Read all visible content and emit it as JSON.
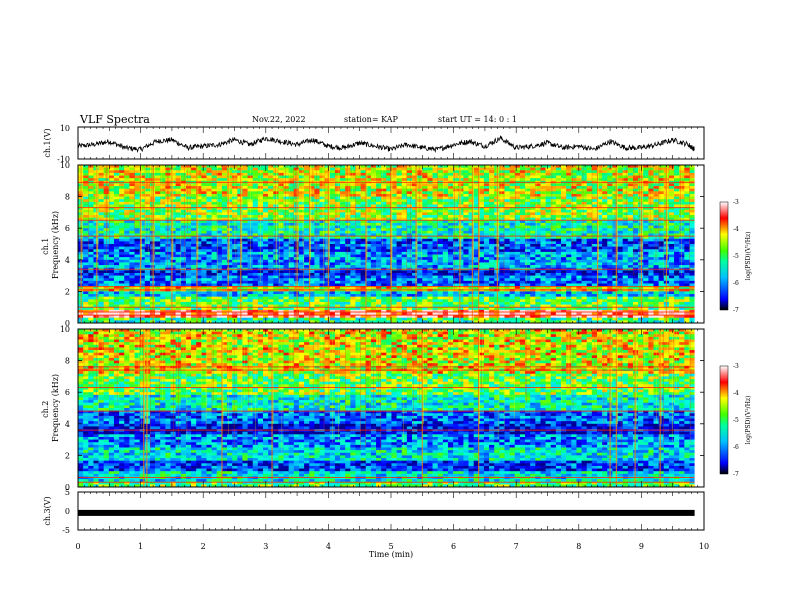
{
  "header": {
    "title": "VLF Spectra",
    "date": "Nov.22, 2022",
    "station": "station= KAP",
    "start": "start  UT =   14: 0  : 1"
  },
  "colors": {
    "bg": "#ffffff",
    "ink": "#000000",
    "colormap": [
      "#00008c",
      "#0000ff",
      "#00a0ff",
      "#00ffff",
      "#00ff80",
      "#40ff00",
      "#ffff00",
      "#ff8000",
      "#ff0000",
      "#ffffff"
    ]
  },
  "chart_data": [
    {
      "type": "line",
      "panel": "ch1-waveform",
      "ylabel": "ch.1(V)",
      "ylim": [
        -10,
        10
      ],
      "yticks": [
        "10",
        "-10"
      ],
      "x": [
        0,
        0.25,
        0.5,
        0.75,
        1.0,
        1.25,
        1.5,
        1.75,
        2.0,
        2.25,
        2.5,
        2.75,
        3.0,
        3.25,
        3.5,
        3.75,
        4.0,
        4.25,
        4.5,
        4.75,
        5.0,
        5.25,
        5.5,
        5.75,
        6.0,
        6.25,
        6.5,
        6.75,
        7.0,
        7.25,
        7.5,
        7.75,
        8.0,
        8.25,
        8.5,
        8.75,
        9.0,
        9.25,
        9.5,
        9.75,
        9.85
      ],
      "y": [
        -2,
        -1,
        1,
        -3,
        -4,
        1,
        2,
        -3,
        -2,
        -1,
        2,
        -1,
        3,
        1,
        -1,
        2,
        -2,
        -3,
        0,
        -2,
        -4,
        -1,
        -3,
        -4,
        -1,
        1,
        -2,
        3,
        -3,
        -2,
        0,
        -3,
        -2,
        -4,
        1,
        -3,
        -3,
        -1,
        2,
        -1,
        -4
      ]
    },
    {
      "type": "heatmap",
      "panel": "ch1-spectrogram",
      "ylabel": "ch.1\nFrequency (kHz)",
      "ylim": [
        0,
        10
      ],
      "yticks": [
        "0",
        "2",
        "4",
        "6",
        "8",
        "10"
      ],
      "xlim": [
        0,
        9.85
      ],
      "colorbar": {
        "label": "log(PSD)(V²/Hz)",
        "range": [
          -7,
          -3
        ],
        "ticks": [
          "-3",
          "-4",
          "-5",
          "-6",
          "-7"
        ]
      },
      "bands": [
        {
          "from": 0,
          "to": 0.4,
          "level": -5
        },
        {
          "from": 0.4,
          "to": 0.8,
          "level": -3.2
        },
        {
          "from": 0.8,
          "to": 1.6,
          "level": -4.8
        },
        {
          "from": 1.6,
          "to": 2.0,
          "level": -5.6
        },
        {
          "from": 2.0,
          "to": 2.3,
          "level": -4.2
        },
        {
          "from": 2.3,
          "to": 3.0,
          "level": -6.0
        },
        {
          "from": 3.0,
          "to": 3.4,
          "level": -6.5
        },
        {
          "from": 3.4,
          "to": 4.5,
          "level": -5.8
        },
        {
          "from": 4.5,
          "to": 5.3,
          "level": -6.2
        },
        {
          "from": 5.3,
          "to": 6.5,
          "level": -5.2
        },
        {
          "from": 6.5,
          "to": 8.0,
          "level": -4.6
        },
        {
          "from": 8.0,
          "to": 10.0,
          "level": -4.3
        }
      ],
      "lines_khz": [
        0.5,
        0.7,
        1.0,
        2.1,
        2.3,
        3.4,
        5.5,
        6.5,
        7.3,
        8.9
      ],
      "bursts_min": [
        0.05,
        0.3,
        1.0,
        1.2,
        1.5,
        1.9,
        2.4,
        2.6,
        3.5,
        3.7,
        4.0,
        4.6,
        5.0,
        5.4,
        6.1,
        6.3,
        6.4,
        6.7,
        8.3,
        8.6,
        9.0,
        9.4
      ]
    },
    {
      "type": "heatmap",
      "panel": "ch2-spectrogram",
      "ylabel": "ch.2\nFrequency (kHz)",
      "ylim": [
        0,
        10
      ],
      "yticks": [
        "0",
        "2",
        "4",
        "6",
        "8",
        "10"
      ],
      "xlim": [
        0,
        9.85
      ],
      "colorbar": {
        "label": "log(PSD)(V²/Hz)",
        "range": [
          -7,
          -3
        ],
        "ticks": [
          "-3",
          "-4",
          "-5",
          "-6",
          "-7"
        ]
      },
      "bands": [
        {
          "from": 0,
          "to": 0.3,
          "level": -4.8
        },
        {
          "from": 0.3,
          "to": 1.0,
          "level": -5.4
        },
        {
          "from": 1.0,
          "to": 1.6,
          "level": -6.3
        },
        {
          "from": 1.6,
          "to": 2.5,
          "level": -5.4
        },
        {
          "from": 2.5,
          "to": 3.4,
          "level": -5.9
        },
        {
          "from": 3.4,
          "to": 4.0,
          "level": -6.6
        },
        {
          "from": 4.0,
          "to": 4.8,
          "level": -6.1
        },
        {
          "from": 4.8,
          "to": 5.8,
          "level": -5.3
        },
        {
          "from": 5.8,
          "to": 7.2,
          "level": -4.7
        },
        {
          "from": 7.2,
          "to": 10.0,
          "level": -4.2
        }
      ],
      "lines_khz": [
        0.3,
        0.6,
        3.6,
        4.8,
        6.3,
        7.4,
        7.6
      ],
      "bursts_min": [
        1.05,
        1.1,
        2.3,
        3.1,
        5.5,
        6.4,
        8.5,
        8.6,
        8.9,
        9.3
      ]
    },
    {
      "type": "line",
      "panel": "ch3-waveform",
      "ylabel": "ch.3(V)",
      "ylim": [
        -5,
        5
      ],
      "yticks": [
        "5",
        "0",
        "-5"
      ],
      "x": [
        0,
        9.85
      ],
      "y": [
        -0.5,
        -0.5
      ]
    }
  ],
  "xaxis": {
    "label": "Time  (min)",
    "ticks": [
      "0",
      "1",
      "2",
      "3",
      "4",
      "5",
      "6",
      "7",
      "8",
      "9",
      "10"
    ],
    "xlim": [
      0,
      10
    ]
  }
}
